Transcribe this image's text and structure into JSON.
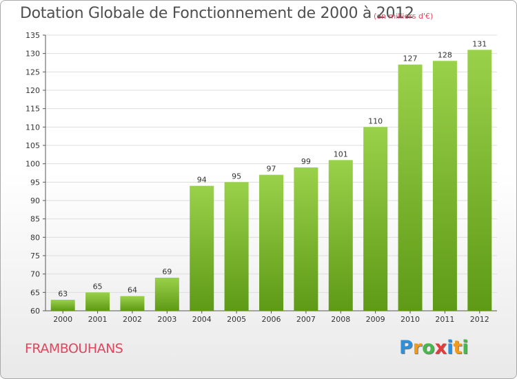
{
  "title": "Dotation Globale de Fonctionnement de 2000 à 2012",
  "subtitle": "(en milliers d'€)",
  "commune": "FRAMBOUHANS",
  "logo": {
    "letters": [
      "P",
      "r",
      "o",
      "x",
      "i",
      "t",
      "i"
    ],
    "colors": [
      "#2f8fd8",
      "#f39a1a",
      "#47b84a",
      "#e23b3b",
      "#2f8fd8",
      "#f39a1a",
      "#47b84a"
    ]
  },
  "colors": {
    "bar_top": "#9ad14b",
    "bar_bottom": "#5e9a16",
    "grid": "#dddddd",
    "title": "#4f4f4f",
    "accent": "#e0455e"
  },
  "chart_data": {
    "type": "bar",
    "categories": [
      "2000",
      "2001",
      "2002",
      "2003",
      "2004",
      "2005",
      "2006",
      "2007",
      "2008",
      "2009",
      "2010",
      "2011",
      "2012"
    ],
    "values": [
      63,
      65,
      64,
      69,
      94,
      95,
      97,
      99,
      101,
      110,
      127,
      128,
      131
    ],
    "ylim": [
      60,
      135
    ],
    "yticks": [
      60,
      65,
      70,
      75,
      80,
      85,
      90,
      95,
      100,
      105,
      110,
      115,
      120,
      125,
      130,
      135
    ],
    "grid": true
  }
}
